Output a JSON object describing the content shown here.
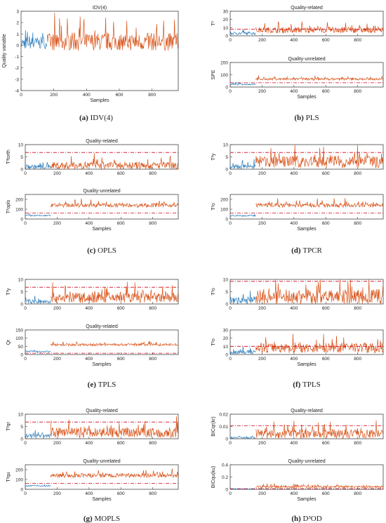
{
  "colors": {
    "normal": "#2b7bba",
    "fault": "#d95319",
    "threshold": "#d0021b",
    "axis": "#444444"
  },
  "sample_ticks": [
    "0",
    "200",
    "400",
    "600",
    "800"
  ],
  "caption_bold": [
    "(a)",
    "(b)",
    "(c)",
    "(d)",
    "(e)",
    "(f)",
    "(g)",
    "(h)"
  ],
  "chart_data": [
    {
      "panel": "a",
      "caption": "IDV(4)",
      "type": "line",
      "title": "IDV(4)",
      "xlabel": "Samples",
      "ylabel": "Quality variable",
      "xlim": [
        0,
        960
      ],
      "ylim": [
        -4,
        3
      ],
      "yticks": [
        "3",
        "2",
        "1",
        "0",
        "-1",
        "-2",
        "-3",
        "-4"
      ],
      "fault_at": 160,
      "threshold": null,
      "series": [
        {
          "from": 0,
          "to": 160,
          "level": 0.2,
          "amp": 0.9
        },
        {
          "from": 160,
          "to": 960,
          "level": 0.3,
          "amp": 1.3
        }
      ]
    },
    {
      "panel": "b",
      "caption": "PLS",
      "type": "line",
      "subplots": [
        {
          "title": "Quality-related",
          "ylabel": "T²",
          "xlabel": "",
          "ylim": [
            0,
            30
          ],
          "yticks": [
            "30",
            "20",
            "10",
            "0"
          ],
          "threshold": 8,
          "series": [
            {
              "from": 0,
              "to": 160,
              "level": 3,
              "amp": 3
            },
            {
              "from": 160,
              "to": 960,
              "level": 7,
              "amp": 6
            }
          ]
        },
        {
          "title": "Quality-unrelated",
          "ylabel": "SPE",
          "xlabel": "Samples",
          "ylim": [
            0,
            200
          ],
          "yticks": [
            "200",
            "100",
            "0"
          ],
          "threshold": 35,
          "series": [
            {
              "from": 0,
              "to": 160,
              "level": 22,
              "amp": 10
            },
            {
              "from": 160,
              "to": 960,
              "level": 65,
              "amp": 15
            }
          ]
        }
      ]
    },
    {
      "panel": "c",
      "caption": "OPLS",
      "type": "line",
      "subplots": [
        {
          "title": "Quality-related",
          "ylabel": "T²torth",
          "xlabel": "",
          "ylim": [
            0,
            10
          ],
          "yticks": [
            "10",
            "5",
            "0"
          ],
          "threshold": 6.8,
          "series": [
            {
              "from": 0,
              "to": 160,
              "level": 1,
              "amp": 1.5
            },
            {
              "from": 160,
              "to": 960,
              "level": 1.5,
              "amp": 2.5
            }
          ]
        },
        {
          "title": "Quality-unrelated",
          "ylabel": "T²opls",
          "xlabel": "Samples",
          "ylim": [
            0,
            250
          ],
          "yticks": [
            "200",
            "100",
            "0"
          ],
          "threshold": 60,
          "series": [
            {
              "from": 0,
              "to": 160,
              "level": 35,
              "amp": 12
            },
            {
              "from": 160,
              "to": 960,
              "level": 140,
              "amp": 35
            }
          ]
        }
      ]
    },
    {
      "panel": "d",
      "caption": "TPCR",
      "type": "line",
      "subplots": [
        {
          "title": "",
          "ylabel": "T²y",
          "xlabel": "",
          "ylim": [
            0,
            10
          ],
          "yticks": [
            "10",
            "5",
            "0"
          ],
          "threshold": 6.8,
          "series": [
            {
              "from": 0,
              "to": 160,
              "level": 1,
              "amp": 1.5
            },
            {
              "from": 160,
              "to": 960,
              "level": 3,
              "amp": 4
            }
          ]
        },
        {
          "title": "",
          "ylabel": "T²o",
          "xlabel": "Samples",
          "ylim": [
            0,
            250
          ],
          "yticks": [
            "200",
            "100",
            "0"
          ],
          "threshold": 60,
          "series": [
            {
              "from": 0,
              "to": 160,
              "level": 35,
              "amp": 12
            },
            {
              "from": 160,
              "to": 960,
              "level": 140,
              "amp": 35
            }
          ]
        }
      ]
    },
    {
      "panel": "e",
      "caption": "TPLS",
      "type": "line",
      "subplots": [
        {
          "title": "",
          "ylabel": "T²y",
          "xlabel": "",
          "ylim": [
            0,
            10
          ],
          "yticks": [
            "10",
            "5",
            "0"
          ],
          "threshold": 6.8,
          "series": [
            {
              "from": 0,
              "to": 160,
              "level": 1,
              "amp": 1.5
            },
            {
              "from": 160,
              "to": 960,
              "level": 2.5,
              "amp": 3.5
            }
          ]
        },
        {
          "title": "Quality-related",
          "ylabel": "Qr",
          "xlabel": "Samples",
          "ylim": [
            0,
            150
          ],
          "yticks": [
            "150",
            "100",
            "50",
            "0"
          ],
          "threshold": 8,
          "series": [
            {
              "from": 0,
              "to": 160,
              "level": 18,
              "amp": 8
            },
            {
              "from": 160,
              "to": 960,
              "level": 60,
              "amp": 12
            }
          ]
        }
      ]
    },
    {
      "panel": "f",
      "caption": "TPLS",
      "type": "line",
      "subplots": [
        {
          "title": "",
          "ylabel": "T²o",
          "xlabel": "",
          "ylim": [
            0,
            10
          ],
          "yticks": [
            "10",
            "5",
            "0"
          ],
          "threshold": 9.2,
          "series": [
            {
              "from": 0,
              "to": 160,
              "level": 1.5,
              "amp": 2.5
            },
            {
              "from": 160,
              "to": 960,
              "level": 3,
              "amp": 5
            }
          ]
        },
        {
          "title": "",
          "ylabel": "T²o",
          "xlabel": "Samples",
          "ylim": [
            0,
            30
          ],
          "yticks": [
            "30",
            "20",
            "10",
            "0"
          ],
          "threshold": 10,
          "series": [
            {
              "from": 0,
              "to": 160,
              "level": 3,
              "amp": 4
            },
            {
              "from": 160,
              "to": 960,
              "level": 8,
              "amp": 10
            }
          ]
        }
      ]
    },
    {
      "panel": "g",
      "caption": "MOPLS",
      "type": "line",
      "subplots": [
        {
          "title": "Quality-related",
          "ylabel": "T²qr",
          "xlabel": "",
          "ylim": [
            0,
            10
          ],
          "yticks": [
            "10",
            "5",
            "0"
          ],
          "threshold": 6.8,
          "series": [
            {
              "from": 0,
              "to": 160,
              "level": 1,
              "amp": 1.5
            },
            {
              "from": 160,
              "to": 960,
              "level": 2.5,
              "amp": 3.5
            }
          ]
        },
        {
          "title": "Quality-unrelated",
          "ylabel": "T²qu",
          "xlabel": "Samples",
          "ylim": [
            0,
            250
          ],
          "yticks": [
            "200",
            "100",
            "0"
          ],
          "threshold": 60,
          "series": [
            {
              "from": 0,
              "to": 160,
              "level": 35,
              "amp": 12
            },
            {
              "from": 160,
              "to": 960,
              "level": 140,
              "amp": 35
            }
          ]
        }
      ]
    },
    {
      "panel": "h",
      "caption": "D³OD",
      "type": "line",
      "subplots": [
        {
          "title": "Quality-related",
          "ylabel": "BICqr(kr)",
          "xlabel": "",
          "ylim": [
            0,
            0.02
          ],
          "yticks": [
            "0.02",
            "0.01",
            "0"
          ],
          "threshold": 0.0105,
          "series": [
            {
              "from": 0,
              "to": 160,
              "level": 0.0008,
              "amp": 0.001
            },
            {
              "from": 160,
              "to": 960,
              "level": 0.004,
              "amp": 0.006
            }
          ]
        },
        {
          "title": "Quality-unrelated",
          "ylabel": "BICqu(ku)",
          "xlabel": "Samples",
          "ylim": [
            0,
            0.4
          ],
          "yticks": [
            "0.4",
            "0.2",
            "0"
          ],
          "threshold": 0.01,
          "series": [
            {
              "from": 0,
              "to": 160,
              "level": 0.005,
              "amp": 0.004
            },
            {
              "from": 160,
              "to": 960,
              "level": 0.04,
              "amp": 0.03
            }
          ]
        }
      ]
    }
  ]
}
